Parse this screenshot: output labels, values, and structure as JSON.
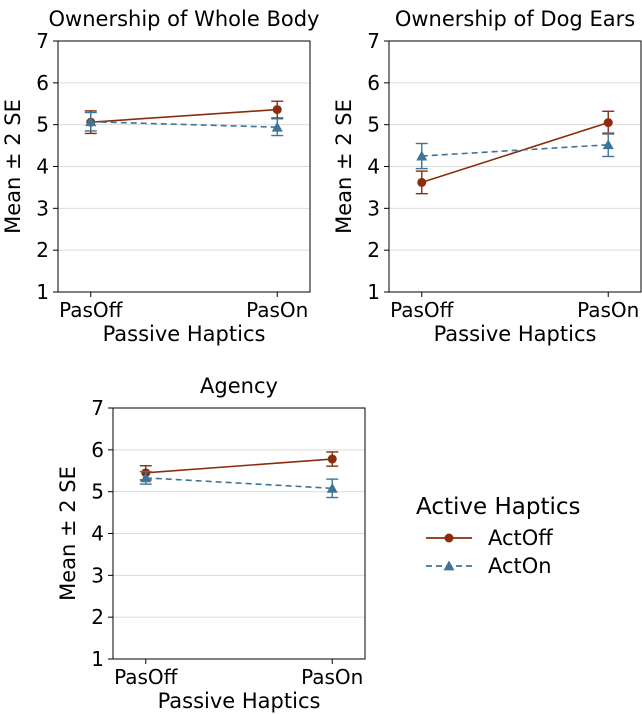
{
  "legend": {
    "title": "Active Haptics",
    "entries": [
      {
        "label": "ActOff",
        "color": "#8b2d0d",
        "marker": "circle",
        "linestyle": "solid"
      },
      {
        "label": "ActOn",
        "color": "#3e7597",
        "marker": "triangle",
        "linestyle": "dashed"
      }
    ],
    "placement": "right"
  },
  "chart_data": [
    {
      "type": "line",
      "title": "Ownership of Whole Body",
      "xlabel": "Passive Haptics",
      "ylabel": "Mean ± 2 SE",
      "categories": [
        "PasOff",
        "PasOn"
      ],
      "ylim": [
        1,
        7
      ],
      "yticks": [
        1,
        2,
        3,
        4,
        5,
        6,
        7
      ],
      "grid": "horizontal",
      "series": [
        {
          "name": "ActOff",
          "values": [
            5.06,
            5.36
          ],
          "err": [
            0.27,
            0.2
          ]
        },
        {
          "name": "ActOn",
          "values": [
            5.07,
            4.94
          ],
          "err": [
            0.22,
            0.2
          ]
        }
      ]
    },
    {
      "type": "line",
      "title": "Ownership of Dog Ears",
      "xlabel": "Passive Haptics",
      "ylabel": "Mean ± 2 SE",
      "categories": [
        "PasOff",
        "PasOn"
      ],
      "ylim": [
        1,
        7
      ],
      "yticks": [
        1,
        2,
        3,
        4,
        5,
        6,
        7
      ],
      "grid": "horizontal",
      "series": [
        {
          "name": "ActOff",
          "values": [
            3.62,
            5.05
          ],
          "err": [
            0.27,
            0.27
          ]
        },
        {
          "name": "ActOn",
          "values": [
            4.25,
            4.52
          ],
          "err": [
            0.3,
            0.28
          ]
        }
      ]
    },
    {
      "type": "line",
      "title": "Agency",
      "xlabel": "Passive Haptics",
      "ylabel": "Mean ± 2 SE",
      "categories": [
        "PasOff",
        "PasOn"
      ],
      "ylim": [
        1,
        7
      ],
      "yticks": [
        1,
        2,
        3,
        4,
        5,
        6,
        7
      ],
      "grid": "horizontal",
      "series": [
        {
          "name": "ActOff",
          "values": [
            5.45,
            5.78
          ],
          "err": [
            0.17,
            0.17
          ]
        },
        {
          "name": "ActOn",
          "values": [
            5.33,
            5.08
          ],
          "err": [
            0.15,
            0.22
          ]
        }
      ]
    }
  ]
}
